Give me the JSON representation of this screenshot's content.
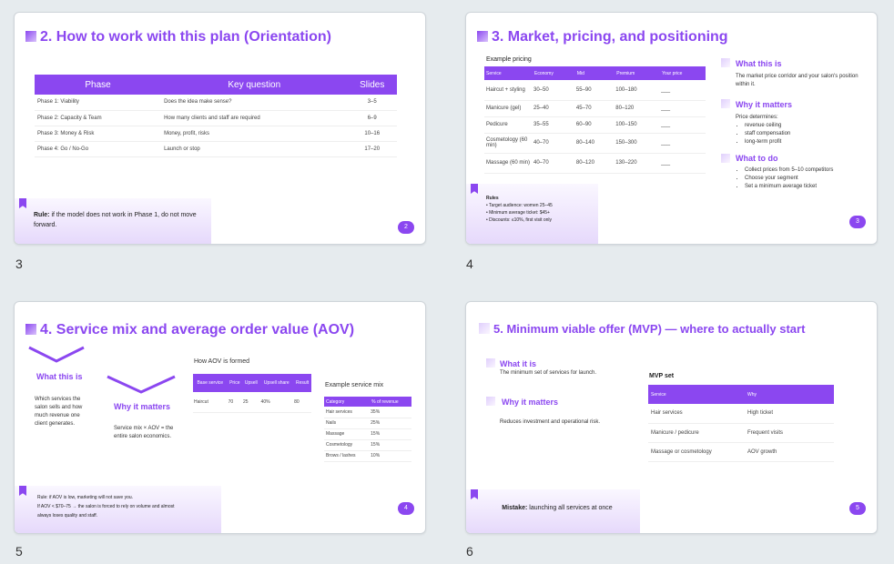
{
  "slides": [
    {
      "number": "3",
      "title": "2. How to work with this plan (Orientation)",
      "table": {
        "headers": [
          "Phase",
          "Key question",
          "Slides"
        ],
        "rows": [
          [
            "Phase 1: Viability",
            "Does the idea make sense?",
            "3–5"
          ],
          [
            "Phase 2: Capacity & Team",
            "How many clients and staff are required",
            "6–9"
          ],
          [
            "Phase 3: Money & Risk",
            "Money, profit, risks",
            "10–16"
          ],
          [
            "Phase 4: Go / No-Go",
            "Launch or stop",
            "17–20"
          ]
        ]
      },
      "callout_strong": "Rule:",
      "callout_text": " if the model does not work in Phase 1, do not move forward.",
      "badge": "2"
    },
    {
      "number": "4",
      "title": "3. Market, pricing, and positioning",
      "pricing_title": "Example pricing",
      "table": {
        "headers": [
          "Service",
          "Economy",
          "Mid",
          "Premium",
          "Your price"
        ],
        "rows": [
          [
            "Haircut + styling",
            "30–50",
            "55–90",
            "100–180",
            "___"
          ],
          [
            "Manicure (gel)",
            "25–40",
            "45–70",
            "80–120",
            "___"
          ],
          [
            "Pedicure",
            "35–55",
            "60–90",
            "100–150",
            "___"
          ],
          [
            "Cosmetology (60 min)",
            "40–70",
            "80–140",
            "150–300",
            "___"
          ],
          [
            "Massage (60 min)",
            "40–70",
            "80–120",
            "130–220",
            "___"
          ]
        ]
      },
      "rules_title": "Rules",
      "rules": [
        "• Target audience: women 25–45",
        "• Minimum average ticket: $45+",
        "• Discounts: ≤10%, first visit only"
      ],
      "what_title": "What this is",
      "what_text": "The market price corridor and your salon's position within it.",
      "why_title": "Why it matters",
      "why_intro": "Price determines:",
      "why_items": [
        "revenue ceiling",
        "staff compensation",
        "long-term profit"
      ],
      "todo_title": "What to do",
      "todo_items": [
        "Collect prices from 5–10 competitors",
        "Choose your segment",
        "Set a minimum average ticket"
      ],
      "badge": "3"
    },
    {
      "number": "5",
      "title": "4. Service mix and average order value (AOV)",
      "what_title": "What this is",
      "what_text": "Which services the salon sells and how much revenue one client generates.",
      "why_title": "Why it matters",
      "why_text": "Service mix × AOV = the entire salon economics.",
      "aov_title": "How AOV is formed",
      "aov_table": {
        "headers": [
          "Base service",
          "Price",
          "Upsell",
          "Upsell share",
          "Result"
        ],
        "rows": [
          [
            "Haircut",
            "70",
            "25",
            "40%",
            "80"
          ]
        ]
      },
      "mix_title": "Example service mix",
      "mix_table": {
        "headers": [
          "Category",
          "% of revenue"
        ],
        "rows": [
          [
            "Hair services",
            "35%"
          ],
          [
            "Nails",
            "25%"
          ],
          [
            "Massage",
            "15%"
          ],
          [
            "Cosmetology",
            "15%"
          ],
          [
            "Brows / lashes",
            "10%"
          ]
        ]
      },
      "callout_lines": [
        "Rule: if AOV is low, marketing will not save you.",
        "If AOV < $70–75 → the salon is forced to rely on volume and almost",
        "always loses quality and staff."
      ],
      "badge": "4"
    },
    {
      "number": "6",
      "title": "5. Minimum viable offer (MVP) — where to actually start",
      "what_title": "What it is",
      "what_text": "The minimum set of services for launch.",
      "why_title": "Why it matters",
      "why_text": "Reduces investment and operational risk.",
      "mvp_title": "MVP set",
      "mvp_table": {
        "headers": [
          "Service",
          "Why"
        ],
        "rows": [
          [
            "Hair services",
            "High ticket"
          ],
          [
            "Manicure / pedicure",
            "Frequent visits"
          ],
          [
            "Massage or cosmetology",
            "AOV growth"
          ]
        ]
      },
      "callout_strong": "Mistake:",
      "callout_text": " launching all services at once",
      "badge": "5"
    }
  ],
  "colors": {
    "accent": "#8b47f0",
    "background": "#e6ebee"
  }
}
